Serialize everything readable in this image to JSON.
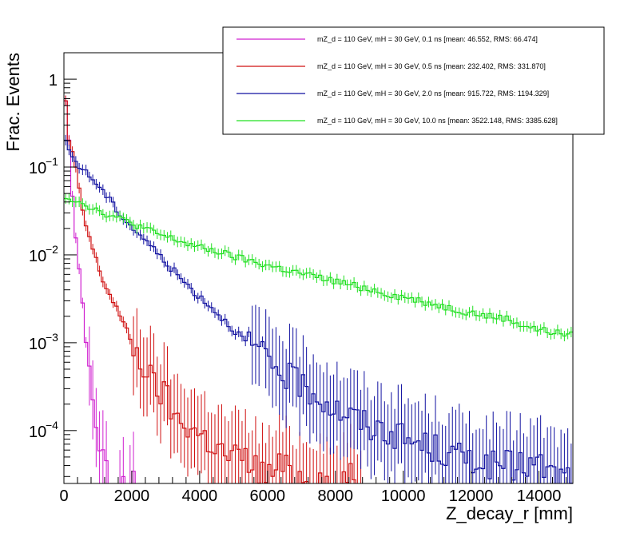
{
  "chart_data": {
    "type": "line",
    "style": "step-histogram",
    "xlabel": "Z_decay_r [mm]",
    "ylabel": "Frac. Events",
    "xlim": [
      0,
      15000
    ],
    "ylim": [
      2.5e-05,
      2
    ],
    "ylog": true,
    "grid": false,
    "legend_position": "top-right",
    "x_ticks": [
      {
        "value": 0,
        "label": "0"
      },
      {
        "value": 2000,
        "label": "2000"
      },
      {
        "value": 4000,
        "label": "4000"
      },
      {
        "value": 6000,
        "label": "6000"
      },
      {
        "value": 8000,
        "label": "8000"
      },
      {
        "value": 10000,
        "label": "10000"
      },
      {
        "value": 12000,
        "label": "12000"
      },
      {
        "value": 14000,
        "label": "14000"
      }
    ],
    "y_ticks": [
      {
        "value": 1,
        "label": "1",
        "sup": ""
      },
      {
        "value": 0.1,
        "label": "10",
        "sup": "−1"
      },
      {
        "value": 0.01,
        "label": "10",
        "sup": "−2"
      },
      {
        "value": 0.001,
        "label": "10",
        "sup": "−3"
      },
      {
        "value": 0.0001,
        "label": "10",
        "sup": "−4"
      }
    ],
    "series": [
      {
        "name": "mZ_d = 110 GeV, mH = 30 GeV, 0.1 ns [mean: 46.552, RMS: 66.474]",
        "color": "#d020d0",
        "anchors": [
          [
            0,
            0.95
          ],
          [
            150,
            0.2
          ],
          [
            300,
            0.025
          ],
          [
            450,
            0.007
          ],
          [
            600,
            0.0018
          ],
          [
            750,
            0.0004
          ],
          [
            900,
            0.00015
          ],
          [
            1050,
            7e-05
          ],
          [
            1200,
            4e-05
          ],
          [
            1500,
            0
          ],
          [
            1650,
            3e-05
          ],
          [
            1750,
            3e-05
          ],
          [
            1850,
            0
          ],
          [
            2000,
            3e-05
          ],
          [
            2100,
            3e-05
          ],
          [
            2200,
            0
          ]
        ],
        "end": 2200
      },
      {
        "name": "mZ_d = 110 GeV, mH = 30 GeV, 0.5 ns [mean: 232.402, RMS: 331.870]",
        "color": "#d01010",
        "anchors": [
          [
            0,
            0.9
          ],
          [
            150,
            0.2
          ],
          [
            300,
            0.12
          ],
          [
            600,
            0.025
          ],
          [
            900,
            0.01
          ],
          [
            1200,
            0.0045
          ],
          [
            1500,
            0.0028
          ],
          [
            1800,
            0.0015
          ],
          [
            2100,
            0.0008
          ],
          [
            2400,
            0.0005
          ],
          [
            2700,
            0.0003
          ],
          [
            3000,
            0.00025
          ],
          [
            3300,
            0.00013
          ],
          [
            3600,
            0.00012
          ],
          [
            4000,
            9e-05
          ],
          [
            4400,
            7e-05
          ],
          [
            4800,
            5e-05
          ],
          [
            5200,
            5e-05
          ],
          [
            5600,
            4e-05
          ],
          [
            6000,
            3e-05
          ],
          [
            6400,
            4e-05
          ],
          [
            6800,
            3e-05
          ],
          [
            7200,
            3e-05
          ],
          [
            7600,
            3e-05
          ],
          [
            8000,
            2e-05
          ],
          [
            8400,
            3e-05
          ],
          [
            8800,
            2e-05
          ]
        ],
        "end": 8800
      },
      {
        "name": "mZ_d = 110 GeV, mH = 30 GeV, 2.0 ns [mean: 915.722, RMS: 1194.329]",
        "color": "#1010a0",
        "anchors": [
          [
            0,
            0.2
          ],
          [
            150,
            0.16
          ],
          [
            300,
            0.12
          ],
          [
            600,
            0.09
          ],
          [
            900,
            0.07
          ],
          [
            1200,
            0.05
          ],
          [
            1500,
            0.035
          ],
          [
            1800,
            0.025
          ],
          [
            2100,
            0.019
          ],
          [
            2400,
            0.015
          ],
          [
            2700,
            0.011
          ],
          [
            3000,
            0.0082
          ],
          [
            3300,
            0.0062
          ],
          [
            3600,
            0.0047
          ],
          [
            3900,
            0.0036
          ],
          [
            4200,
            0.0029
          ],
          [
            4500,
            0.0022
          ],
          [
            4800,
            0.0017
          ],
          [
            5100,
            0.0013
          ],
          [
            5400,
            0.001
          ],
          [
            5700,
            0.0008
          ],
          [
            6000,
            0.0006
          ],
          [
            6300,
            0.0005
          ],
          [
            6600,
            0.0004
          ],
          [
            6900,
            0.00035
          ],
          [
            7200,
            0.0003
          ],
          [
            7500,
            0.00025
          ],
          [
            7800,
            0.0002
          ],
          [
            8100,
            0.00017
          ],
          [
            8400,
            0.00015
          ],
          [
            8700,
            0.00013
          ],
          [
            9000,
            0.00011
          ],
          [
            9500,
            0.0001
          ],
          [
            10000,
            8e-05
          ],
          [
            10500,
            7e-05
          ],
          [
            11000,
            6e-05
          ],
          [
            11500,
            5e-05
          ],
          [
            12000,
            5e-05
          ],
          [
            12500,
            4e-05
          ],
          [
            13000,
            4e-05
          ],
          [
            13500,
            4e-05
          ],
          [
            14000,
            4e-05
          ],
          [
            14500,
            3e-05
          ],
          [
            15000,
            3e-05
          ]
        ],
        "end": 15000
      },
      {
        "name": "mZ_d = 110 GeV, mH = 30 GeV, 10.0 ns [mean: 3522.148, RMS: 3385.628]",
        "color": "#20e020",
        "anchors": [
          [
            0,
            0.047
          ],
          [
            500,
            0.04
          ],
          [
            1000,
            0.032
          ],
          [
            1500,
            0.027
          ],
          [
            2000,
            0.023
          ],
          [
            2500,
            0.019
          ],
          [
            3000,
            0.016
          ],
          [
            3500,
            0.014
          ],
          [
            4000,
            0.012
          ],
          [
            4500,
            0.011
          ],
          [
            5000,
            0.0095
          ],
          [
            5500,
            0.0085
          ],
          [
            6000,
            0.0076
          ],
          [
            6500,
            0.0068
          ],
          [
            7000,
            0.0061
          ],
          [
            7500,
            0.0055
          ],
          [
            8000,
            0.005
          ],
          [
            8500,
            0.0045
          ],
          [
            9000,
            0.0041
          ],
          [
            9500,
            0.0036
          ],
          [
            10000,
            0.0033
          ],
          [
            10500,
            0.003
          ],
          [
            11000,
            0.0027
          ],
          [
            11500,
            0.0024
          ],
          [
            12000,
            0.0022
          ],
          [
            12500,
            0.002
          ],
          [
            13000,
            0.0019
          ],
          [
            13500,
            0.0016
          ],
          [
            14000,
            0.0014
          ],
          [
            14500,
            0.0013
          ],
          [
            15000,
            0.0012
          ]
        ],
        "end": 15000
      }
    ]
  }
}
